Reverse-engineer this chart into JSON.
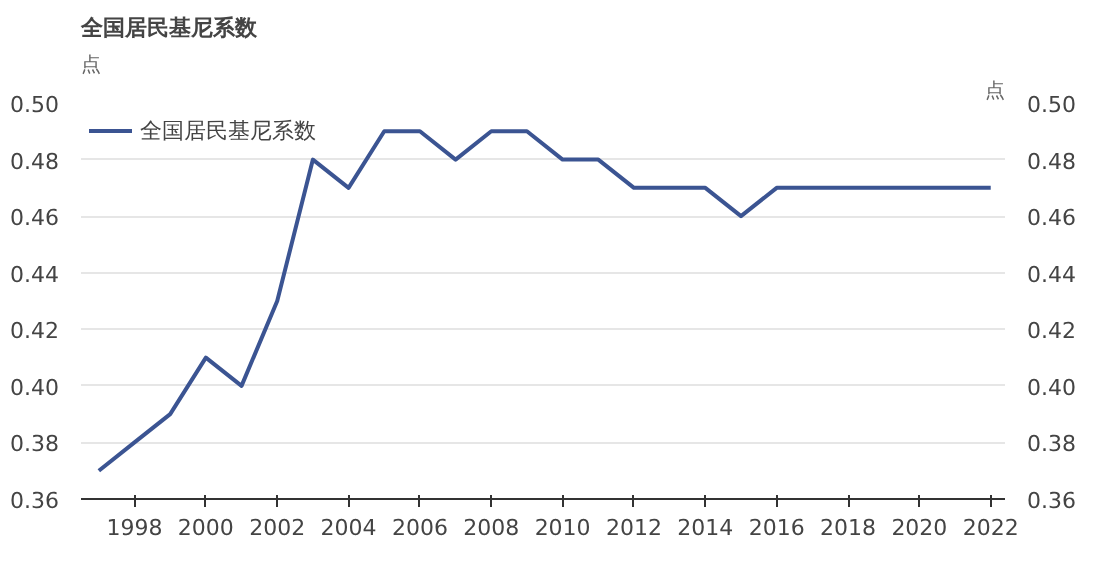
{
  "chart_data": {
    "type": "line",
    "title": "全国居民基尼系数",
    "ylabel": "点",
    "y2label": "点",
    "x": [
      1997,
      1998,
      1999,
      2000,
      2001,
      2002,
      2003,
      2004,
      2005,
      2006,
      2007,
      2008,
      2009,
      2010,
      2011,
      2012,
      2013,
      2014,
      2015,
      2016,
      2017,
      2018,
      2019,
      2020,
      2021,
      2022
    ],
    "series": [
      {
        "name": "全国居民基尼系数",
        "color": "#3b5492",
        "values": [
          0.37,
          0.38,
          0.39,
          0.41,
          0.4,
          0.43,
          0.48,
          0.47,
          0.49,
          0.49,
          0.48,
          0.49,
          0.49,
          0.48,
          0.48,
          0.47,
          0.47,
          0.47,
          0.46,
          0.47,
          0.47,
          0.47,
          0.47,
          0.47,
          0.47,
          0.47
        ]
      }
    ],
    "xlim": [
      1996.5,
      2022.4
    ],
    "xticks": [
      1998,
      2000,
      2002,
      2004,
      2006,
      2008,
      2010,
      2012,
      2014,
      2016,
      2018,
      2020,
      2022
    ],
    "ylim": [
      0.36,
      0.5
    ],
    "yticks": [
      {
        "value": 0.36,
        "label": "0.36"
      },
      {
        "value": 0.38,
        "label": "0.38"
      },
      {
        "value": 0.4,
        "label": "0.40"
      },
      {
        "value": 0.42,
        "label": "0.42"
      },
      {
        "value": 0.44,
        "label": "0.44"
      },
      {
        "value": 0.46,
        "label": "0.46"
      },
      {
        "value": 0.48,
        "label": "0.48"
      },
      {
        "value": 0.5,
        "label": "0.50"
      }
    ],
    "y2lim": [
      0.36,
      0.5
    ],
    "y2ticks": [
      {
        "value": 0.36,
        "label": "0.36"
      },
      {
        "value": 0.38,
        "label": "0.38"
      },
      {
        "value": 0.4,
        "label": "0.40"
      },
      {
        "value": 0.42,
        "label": "0.42"
      },
      {
        "value": 0.44,
        "label": "0.44"
      },
      {
        "value": 0.46,
        "label": "0.46"
      },
      {
        "value": 0.48,
        "label": "0.48"
      },
      {
        "value": 0.5,
        "label": "0.50"
      }
    ],
    "grid": "y",
    "legend": "top left",
    "line_style": "solid"
  }
}
